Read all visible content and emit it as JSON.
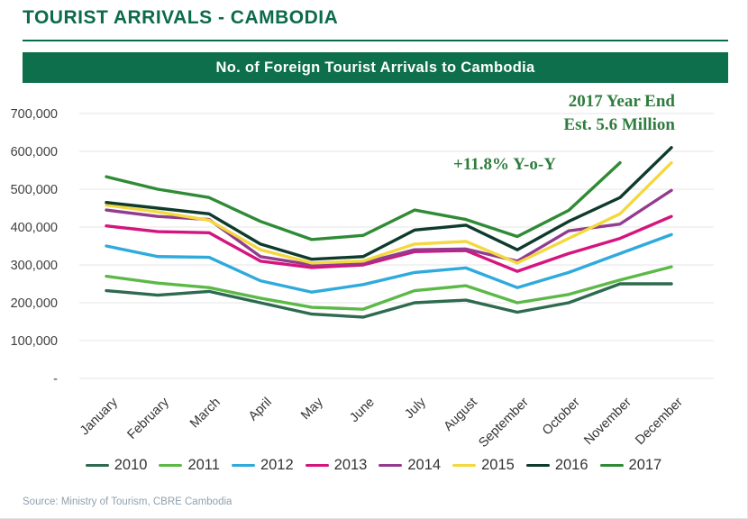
{
  "header": {
    "title": "TOURIST ARRIVALS - CAMBODIA",
    "banner": "No. of  Foreign Tourist Arrivals to Cambodia"
  },
  "annotations": {
    "year_end_line1": "2017 Year End",
    "year_end_line2": "Est. 5.6 Million",
    "yoy": "+11.8% Y-o-Y",
    "color": "#2f7c3e"
  },
  "footer": {
    "source": "Source: Ministry of Tourism, CBRE Cambodia"
  },
  "chart_data": {
    "type": "line",
    "title": "No. of Foreign Tourist Arrivals to Cambodia",
    "categories": [
      "January",
      "February",
      "March",
      "April",
      "May",
      "June",
      "July",
      "August",
      "September",
      "October",
      "November",
      "December"
    ],
    "y_ticks": [
      {
        "label": "700,000",
        "value": 700000
      },
      {
        "label": "600,000",
        "value": 600000
      },
      {
        "label": "500,000",
        "value": 500000
      },
      {
        "label": "400,000",
        "value": 400000
      },
      {
        "label": "300,000",
        "value": 300000
      },
      {
        "label": "200,000",
        "value": 200000
      },
      {
        "label": "100,000",
        "value": 100000
      },
      {
        "label": "-",
        "value": 0
      }
    ],
    "ylim": [
      0,
      700000
    ],
    "grid": true,
    "legend_position": "bottom",
    "series": [
      {
        "name": "2010",
        "color": "#2d6a4f",
        "values": [
          232000,
          220000,
          230000,
          200000,
          170000,
          162000,
          200000,
          207000,
          175000,
          200000,
          250000,
          250000
        ]
      },
      {
        "name": "2011",
        "color": "#5cb947",
        "values": [
          270000,
          252000,
          240000,
          212000,
          188000,
          183000,
          232000,
          245000,
          200000,
          222000,
          260000,
          295000
        ]
      },
      {
        "name": "2012",
        "color": "#2faadc",
        "values": [
          350000,
          322000,
          320000,
          258000,
          228000,
          248000,
          280000,
          292000,
          240000,
          280000,
          330000,
          380000
        ]
      },
      {
        "name": "2013",
        "color": "#d4157e",
        "values": [
          403000,
          388000,
          385000,
          310000,
          293000,
          300000,
          335000,
          338000,
          283000,
          330000,
          370000,
          428000
        ]
      },
      {
        "name": "2014",
        "color": "#933b8e",
        "values": [
          445000,
          428000,
          420000,
          322000,
          300000,
          305000,
          340000,
          342000,
          310000,
          390000,
          408000,
          497000
        ]
      },
      {
        "name": "2015",
        "color": "#f3d83f",
        "values": [
          458000,
          440000,
          418000,
          340000,
          305000,
          310000,
          355000,
          362000,
          305000,
          370000,
          435000,
          570000
        ]
      },
      {
        "name": "2016",
        "color": "#0e3b2c",
        "values": [
          465000,
          450000,
          435000,
          355000,
          315000,
          322000,
          392000,
          405000,
          340000,
          415000,
          478000,
          610000
        ]
      },
      {
        "name": "2017",
        "color": "#2f8b35",
        "values": [
          533000,
          500000,
          478000,
          415000,
          367000,
          378000,
          445000,
          420000,
          375000,
          444000,
          570000,
          null
        ]
      }
    ]
  }
}
